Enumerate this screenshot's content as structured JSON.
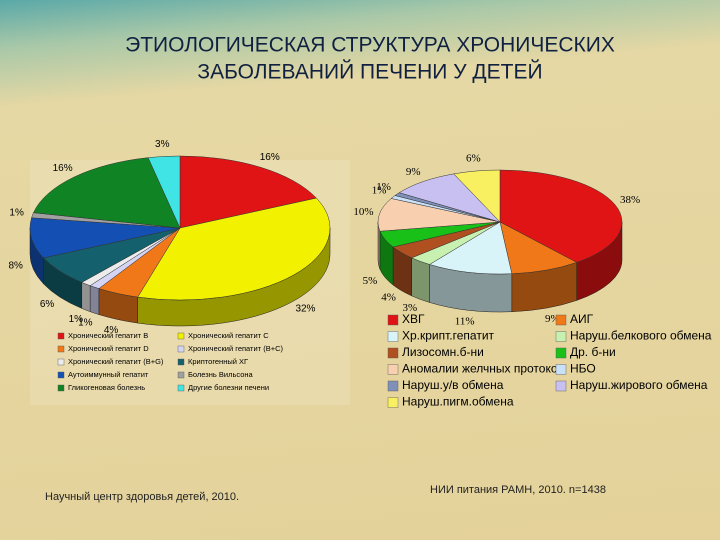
{
  "title": [
    "ЭТИОЛОГИЧЕСКАЯ СТРУКТУРА ХРОНИЧЕСКИХ",
    "ЗАБОЛЕВАНИЙ ПЕЧЕНИ У ДЕТЕЙ"
  ],
  "chart_data": [
    {
      "type": "pie",
      "categories": [
        "Хронический гепатит В",
        "Хронический гепатит С",
        "Хронический гепатит D",
        "Хронический гепатит (В+С)",
        "Хронический гепатит (В+G)",
        "Криптогенный ХГ",
        "Аутоиммунный гепатит",
        "Болезнь Вильсона",
        "Гликогеновая болезнь",
        "Другие болезни печени"
      ],
      "values": [
        16,
        32,
        4,
        1,
        1,
        6,
        8,
        1,
        16,
        3
      ],
      "value_labels": [
        "16%",
        "32%",
        "4%",
        "1%",
        "1%",
        "6%",
        "8%",
        "1%",
        "16%",
        "3%"
      ],
      "colors": [
        "#e01414",
        "#f2f200",
        "#f07818",
        "#d4d4f4",
        "#ececec",
        "#14606c",
        "#1450b4",
        "#a0a0a0",
        "#108424",
        "#40e4e4"
      ],
      "source": "Научный центр здоровья детей, 2010."
    },
    {
      "type": "pie",
      "categories": [
        "ХВГ",
        "АИГ",
        "Хр.крипт.гепатит",
        "Наруш.белкового обмена",
        "Лизосомн.б-ни",
        "Др. б-ни",
        "Аномалии желчных протоков",
        "НБО",
        "Наруш.у/в обмена",
        "Наруш.жирового обмена",
        "Наруш.пигм.обмена"
      ],
      "values": [
        38,
        9,
        11,
        3,
        4,
        5,
        10,
        1,
        1,
        9,
        6
      ],
      "value_labels": [
        "38%",
        "9%",
        "11%",
        "3%",
        "4%",
        "5%",
        "10%",
        "1%",
        "1%",
        "9%",
        "6%"
      ],
      "colors": [
        "#e01414",
        "#f07818",
        "#d8f4f8",
        "#c8f0b0",
        "#b05020",
        "#18c018",
        "#f8d0b0",
        "#c8e0f8",
        "#8090b8",
        "#c8c0f0",
        "#f8f060"
      ],
      "source": "НИИ питания РАМН, 2010. n=1438"
    }
  ]
}
